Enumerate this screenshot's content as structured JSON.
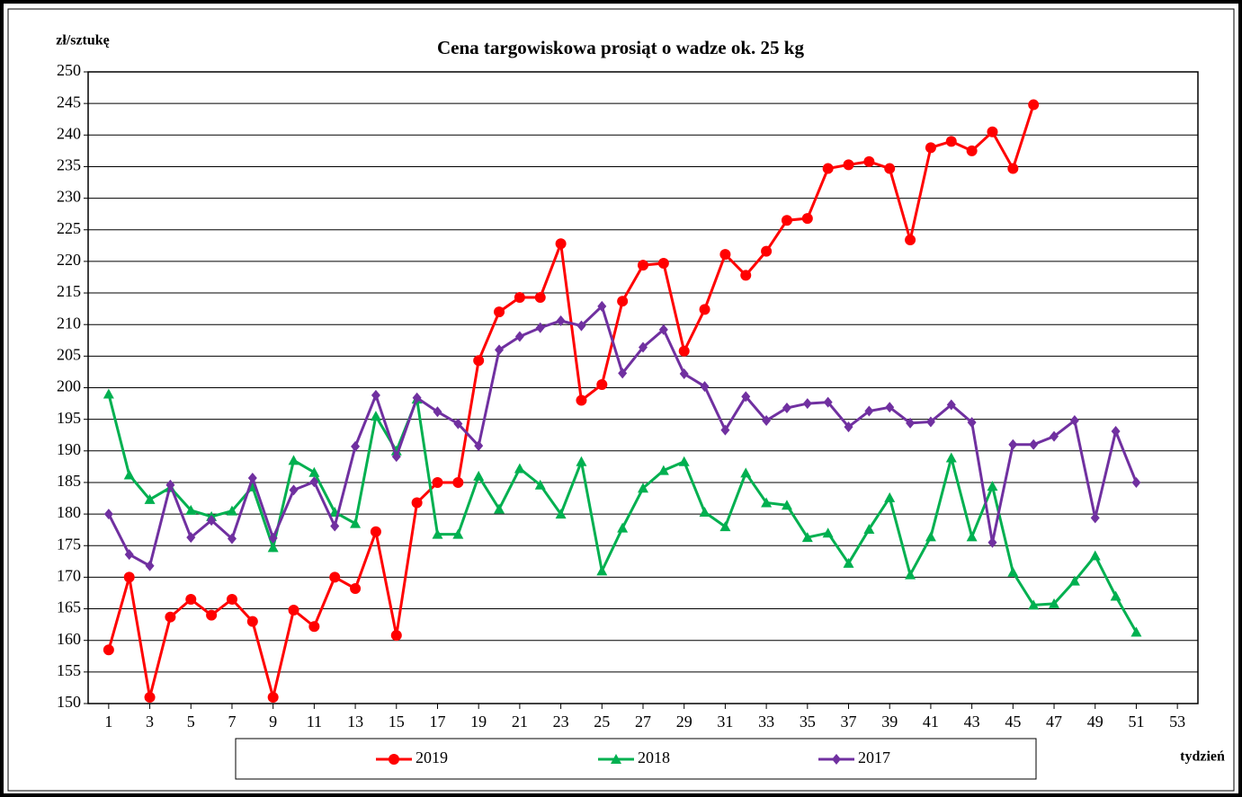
{
  "chart_data": {
    "type": "line",
    "title": "Cena targowiskowa prosiąt o wadze ok. 25 kg",
    "y_label": "zł/sztukę",
    "x_label": "tydzień",
    "x": [
      1,
      2,
      3,
      4,
      5,
      6,
      7,
      8,
      9,
      10,
      11,
      12,
      13,
      14,
      15,
      16,
      17,
      18,
      19,
      20,
      21,
      22,
      23,
      24,
      25,
      26,
      27,
      28,
      29,
      30,
      31,
      32,
      33,
      34,
      35,
      36,
      37,
      38,
      39,
      40,
      41,
      42,
      43,
      44,
      45,
      46,
      47,
      48,
      49,
      50,
      51,
      52,
      53
    ],
    "xlim": [
      0,
      54
    ],
    "xticks": [
      1,
      3,
      5,
      7,
      9,
      11,
      13,
      15,
      17,
      19,
      21,
      23,
      25,
      27,
      29,
      31,
      33,
      35,
      37,
      39,
      41,
      43,
      45,
      47,
      49,
      51,
      53
    ],
    "ylim": [
      150,
      250
    ],
    "yticks": [
      150,
      155,
      160,
      165,
      170,
      175,
      180,
      185,
      190,
      195,
      200,
      205,
      210,
      215,
      220,
      225,
      230,
      235,
      240,
      245,
      250
    ],
    "grid": true,
    "legend": "bottom",
    "series": [
      {
        "name": "2019",
        "color": "#ff0000",
        "marker": "circle",
        "values": [
          158.5,
          170,
          151,
          163.7,
          166.5,
          164,
          166.5,
          163,
          151,
          164.8,
          162.2,
          170,
          168.2,
          177.2,
          160.8,
          181.8,
          185,
          185,
          204.3,
          212,
          214.3,
          214.3,
          222.8,
          198,
          200.5,
          213.7,
          219.4,
          219.7,
          205.8,
          212.4,
          221.1,
          217.8,
          221.6,
          226.5,
          226.8,
          234.7,
          235.3,
          235.8,
          234.7,
          223.4,
          238,
          239,
          237.5,
          240.5,
          234.7,
          244.8,
          null,
          null,
          null,
          null,
          null,
          null,
          null
        ]
      },
      {
        "name": "2018",
        "color": "#00b050",
        "marker": "triangle",
        "values": [
          199,
          186.2,
          182.3,
          184.2,
          180.6,
          179.6,
          180.5,
          184.3,
          174.7,
          188.5,
          186.6,
          180.3,
          178.5,
          195.5,
          190,
          198.2,
          176.8,
          176.8,
          186,
          180.8,
          187.2,
          184.6,
          180,
          188.3,
          171,
          177.8,
          184.1,
          186.9,
          188.3,
          180.3,
          178,
          186.5,
          181.8,
          181.4,
          176.3,
          177,
          172.2,
          177.6,
          182.6,
          170.4,
          176.4,
          188.9,
          176.4,
          184.4,
          170.8,
          165.6,
          165.8,
          169.4,
          173.4,
          167,
          161.3,
          null,
          null
        ]
      },
      {
        "name": "2017",
        "color": "#7030a0",
        "marker": "diamond",
        "values": [
          180,
          173.6,
          171.8,
          184.6,
          176.3,
          179,
          176.1,
          185.7,
          176.2,
          183.8,
          185.1,
          178.1,
          190.7,
          198.8,
          189.1,
          198.4,
          196.2,
          194.3,
          190.8,
          206,
          208.1,
          209.5,
          210.6,
          209.8,
          212.9,
          202.3,
          206.4,
          209.2,
          202.2,
          200.2,
          193.3,
          198.6,
          194.8,
          196.8,
          197.5,
          197.7,
          193.8,
          196.3,
          196.9,
          194.4,
          194.6,
          197.3,
          194.5,
          175.5,
          191,
          191,
          192.3,
          194.8,
          179.4,
          193.1,
          185,
          null,
          null
        ]
      }
    ]
  }
}
